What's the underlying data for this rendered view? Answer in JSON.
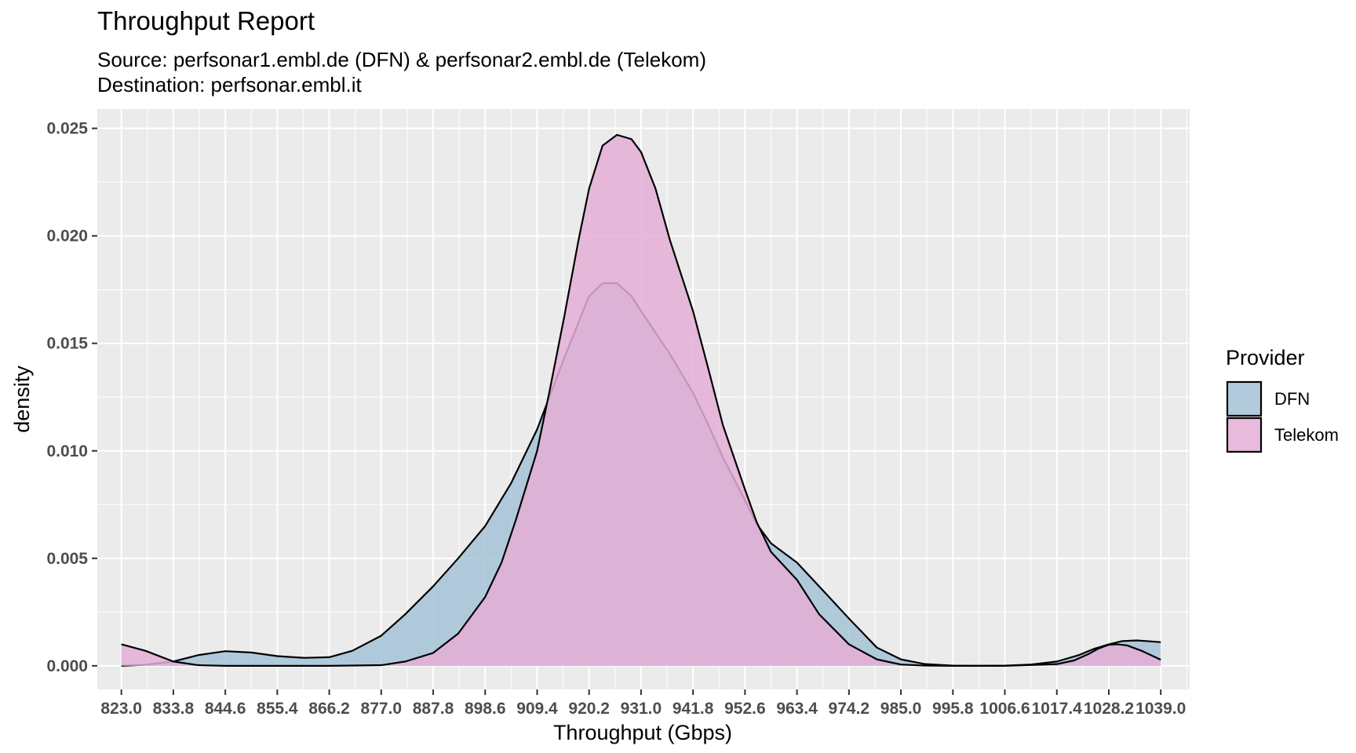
{
  "chart_data": {
    "type": "area",
    "title": "Throughput Report",
    "subtitle_lines": [
      "Source: perfsonar1.embl.de (DFN) & perfsonar2.embl.de (Telekom)",
      "Destination: perfsonar.embl.it"
    ],
    "xlabel": "Throughput (Gbps)",
    "ylabel": "density",
    "xlim": [
      818,
      1045
    ],
    "ylim": [
      -0.0011,
      0.0259
    ],
    "x_ticks": [
      823.0,
      833.8,
      844.6,
      855.4,
      866.2,
      877.0,
      887.8,
      898.6,
      909.4,
      920.2,
      931.0,
      941.8,
      952.6,
      963.4,
      974.2,
      985.0,
      995.8,
      1006.6,
      1017.4,
      1028.2,
      1039.0
    ],
    "x_tick_labels": [
      "823.0",
      "833.8",
      "844.6",
      "855.4",
      "866.2",
      "877.0",
      "887.8",
      "898.6",
      "909.4",
      "920.2",
      "931.0",
      "941.8",
      "952.6",
      "963.4",
      "974.2",
      "985.0",
      "995.8",
      "1006.6",
      "1017.4",
      "1028.2",
      "1039.0"
    ],
    "y_ticks": [
      0.0,
      0.005,
      0.01,
      0.015,
      0.02,
      0.025
    ],
    "y_tick_labels": [
      "0.000",
      "0.005",
      "0.010",
      "0.015",
      "0.020",
      "0.025"
    ],
    "grid": true,
    "legend": {
      "title": "Provider",
      "position": "right"
    },
    "series": [
      {
        "name": "DFN",
        "color": "#a6c3d7",
        "x": [
          823,
          828,
          833.8,
          839,
          844.6,
          850,
          855.4,
          861,
          866.2,
          871,
          877,
          882,
          887.8,
          893,
          898.6,
          904,
          909.4,
          915,
          920.2,
          923,
          926,
          929,
          931,
          934,
          937,
          941.8,
          945,
          948,
          952.6,
          955,
          958,
          963.4,
          968,
          974.2,
          980,
          985,
          990,
          995.8,
          1001,
          1006.6,
          1012,
          1017.4,
          1022,
          1025,
          1028.2,
          1031,
          1034,
          1036,
          1039
        ],
        "y": [
          0.0,
          5e-05,
          0.0002,
          0.0005,
          0.00068,
          0.00062,
          0.00045,
          0.00037,
          0.0004,
          0.0007,
          0.0014,
          0.0024,
          0.0037,
          0.005,
          0.0065,
          0.0085,
          0.011,
          0.0143,
          0.0172,
          0.0178,
          0.0178,
          0.0172,
          0.0165,
          0.0155,
          0.0145,
          0.0127,
          0.0112,
          0.0097,
          0.0077,
          0.0066,
          0.0057,
          0.0048,
          0.0037,
          0.0022,
          0.00085,
          0.0003,
          8e-05,
          1e-05,
          0.0,
          1e-05,
          6e-05,
          0.0002,
          0.0005,
          0.00078,
          0.001,
          0.00115,
          0.00118,
          0.00115,
          0.0011
        ]
      },
      {
        "name": "Telekom",
        "color": "#e4aed6",
        "x": [
          823,
          828,
          833.8,
          839,
          844.6,
          855.4,
          866.2,
          877,
          882,
          887.8,
          893,
          898.6,
          902,
          905,
          909.4,
          912,
          915,
          918,
          920.2,
          923,
          926,
          929,
          931,
          934,
          937,
          941.8,
          945,
          948,
          952.6,
          955,
          958,
          963.4,
          968,
          974.2,
          980,
          985,
          990,
          995.8,
          1006.6,
          1017.4,
          1021,
          1024,
          1026,
          1028.2,
          1030,
          1032,
          1035,
          1039
        ],
        "y": [
          0.001,
          0.0007,
          0.0002,
          3e-05,
          0.0,
          0.0,
          0.0,
          3e-05,
          0.0002,
          0.0006,
          0.0015,
          0.0032,
          0.0048,
          0.0068,
          0.01,
          0.0128,
          0.0162,
          0.0198,
          0.0222,
          0.0242,
          0.0247,
          0.0245,
          0.0239,
          0.0222,
          0.0198,
          0.0165,
          0.0138,
          0.0112,
          0.0082,
          0.0067,
          0.0053,
          0.004,
          0.0024,
          0.001,
          0.0003,
          6e-05,
          1e-05,
          0.0,
          0.0,
          8e-05,
          0.00025,
          0.00055,
          0.0008,
          0.00098,
          0.001,
          0.00095,
          0.0007,
          0.00028
        ]
      }
    ]
  }
}
